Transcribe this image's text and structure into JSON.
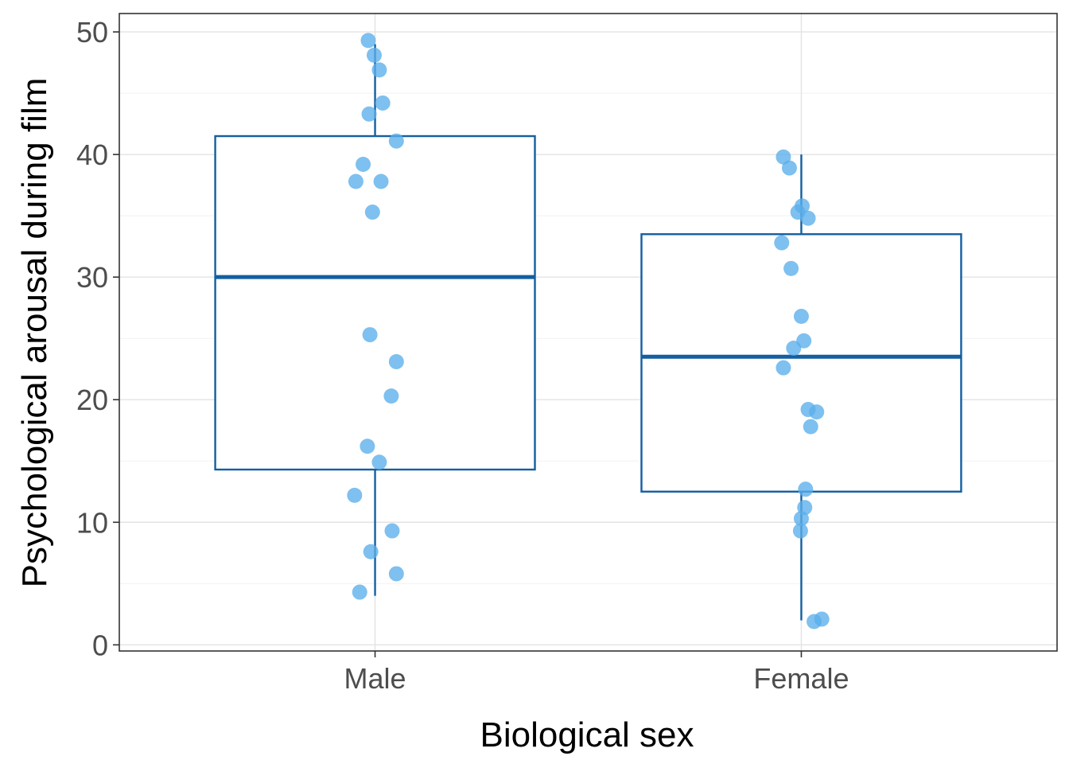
{
  "colors": {
    "box": "#135fa1",
    "point": "#5aaeeb",
    "grid_major": "#e3e3e3",
    "grid_minor": "#f2f2f2",
    "panel_border": "#333333",
    "tick_text": "#4d4d4d",
    "title_text": "#000000"
  },
  "chart_data": {
    "type": "boxplot",
    "title": "",
    "xlabel": "Biological sex",
    "ylabel": "Psychological arousal during film",
    "ylim": [
      -0.5,
      51.5
    ],
    "yticks": [
      0,
      10,
      20,
      30,
      40,
      50
    ],
    "ytick_labels": [
      "0",
      "10",
      "20",
      "30",
      "40",
      "50"
    ],
    "yminor": [
      5,
      15,
      25,
      35,
      45
    ],
    "categories": [
      "Male",
      "Female"
    ],
    "boxes": [
      {
        "category": "Male",
        "whisker_low": 4,
        "q1": 14.3,
        "median": 30,
        "q3": 41.5,
        "whisker_high": 49
      },
      {
        "category": "Female",
        "whisker_low": 2,
        "q1": 12.5,
        "median": 23.5,
        "q3": 33.5,
        "whisker_high": 40
      }
    ],
    "points": [
      {
        "category": "Male",
        "values": [
          49.3,
          48.1,
          46.9,
          44.2,
          43.3,
          41.1,
          39.2,
          37.8,
          37.8,
          35.3,
          25.3,
          23.1,
          20.3,
          16.2,
          14.9,
          12.2,
          9.3,
          7.6,
          5.8,
          4.3
        ],
        "jitter": [
          -0.016,
          -0.002,
          0.01,
          0.018,
          -0.014,
          0.05,
          -0.028,
          -0.045,
          0.014,
          -0.006,
          -0.012,
          0.05,
          0.038,
          -0.018,
          0.01,
          -0.048,
          0.04,
          -0.01,
          0.05,
          -0.036
        ]
      },
      {
        "category": "Female",
        "values": [
          39.8,
          38.9,
          35.8,
          35.3,
          34.8,
          32.8,
          30.7,
          26.8,
          24.8,
          24.2,
          22.6,
          19.2,
          19.0,
          17.8,
          12.7,
          11.2,
          10.3,
          9.3,
          2.1,
          1.9
        ],
        "jitter": [
          -0.042,
          -0.028,
          0.002,
          -0.008,
          0.016,
          -0.046,
          -0.024,
          0.0,
          0.006,
          -0.018,
          -0.042,
          0.016,
          0.036,
          0.022,
          0.01,
          0.008,
          0.0,
          -0.002,
          0.048,
          0.03
        ]
      }
    ]
  }
}
